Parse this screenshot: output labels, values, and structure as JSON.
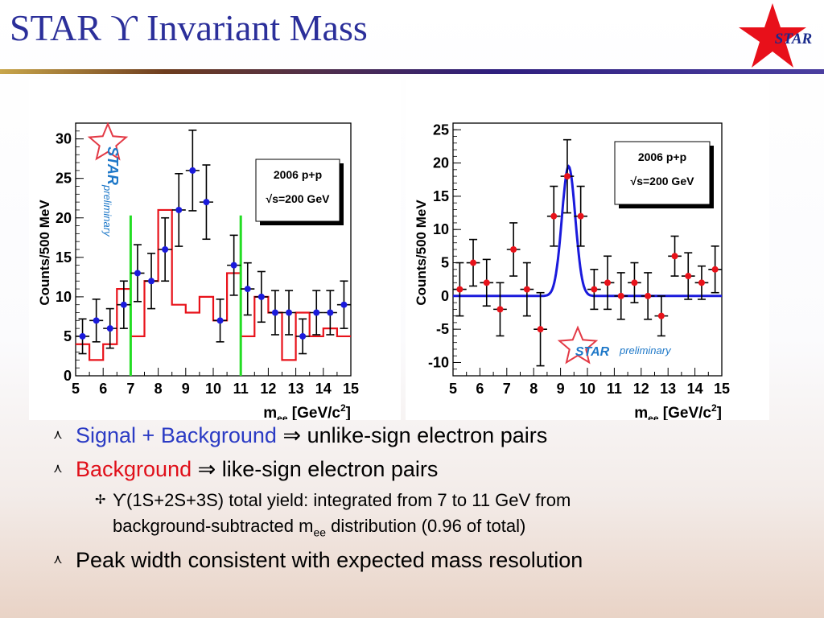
{
  "title": "STAR ϒ Invariant Mass",
  "logo_text": "STAR",
  "colors": {
    "title": "#2b2f9a",
    "data_points": "#1a1adc",
    "background_hist": "#e8121a",
    "window_lines": "#22dd22",
    "fit_curve": "#1a1adc",
    "right_points": "#e8121a",
    "signal_text": "#2b3bc4",
    "background_text": "#e0101a"
  },
  "chart_data": [
    {
      "type": "bar",
      "xlabel_main": "m",
      "xlabel_sub": "ee",
      "xlabel_rest": " [GeV/c",
      "xlabel_sup": "2",
      "xlabel_end": "]",
      "ylabel": "Counts/500 MeV",
      "xlim": [
        5,
        15
      ],
      "ylim": [
        0,
        32
      ],
      "x_ticks": [
        "5",
        "6",
        "7",
        "8",
        "9",
        "10",
        "11",
        "12",
        "13",
        "14",
        "15"
      ],
      "y_ticks": [
        "0",
        "5",
        "10",
        "15",
        "20",
        "25",
        "30"
      ],
      "info_box": {
        "line1": "2006 p+p",
        "line2": "√s=200 GeV"
      },
      "watermark": {
        "logo": "STAR",
        "text": "preliminary"
      },
      "window_lines": [
        7,
        11
      ],
      "background_histogram": {
        "edges": [
          5,
          5.5,
          6,
          6.5,
          7,
          7.5,
          8,
          8.5,
          9,
          9.5,
          10,
          10.5,
          11,
          11.5,
          12,
          12.5,
          13,
          13.5,
          14,
          14.5,
          15
        ],
        "values": [
          4,
          2,
          4,
          11,
          5,
          12,
          21,
          9,
          8,
          10,
          7,
          13,
          5,
          10,
          8,
          2,
          8,
          5,
          6,
          5
        ]
      },
      "series": [
        {
          "x": [
            5.25,
            5.75,
            6.25,
            6.75,
            7.25,
            7.75,
            8.25,
            8.75,
            9.25,
            9.75,
            10.25,
            10.75,
            11.25,
            11.75,
            12.25,
            12.75,
            13.25,
            13.75,
            14.25,
            14.75
          ],
          "values": [
            5,
            7,
            6,
            9,
            13,
            12,
            16,
            21,
            26,
            22,
            7,
            14,
            11,
            10,
            8,
            8,
            5,
            8,
            8,
            9
          ],
          "err": [
            2.2,
            2.7,
            2.5,
            3,
            3.6,
            3.5,
            4,
            4.6,
            5.1,
            4.7,
            2.7,
            3.8,
            3.3,
            3.2,
            2.8,
            2.8,
            2.2,
            2.8,
            2.8,
            3
          ]
        }
      ]
    },
    {
      "type": "scatter",
      "xlabel_main": "m",
      "xlabel_sub": "ee",
      "xlabel_rest": " [GeV/c",
      "xlabel_sup": "2",
      "xlabel_end": "]",
      "ylabel": "Counts/500 MeV",
      "xlim": [
        5,
        15
      ],
      "ylim": [
        -12,
        26
      ],
      "x_ticks": [
        "5",
        "6",
        "7",
        "8",
        "9",
        "10",
        "11",
        "12",
        "13",
        "14",
        "15"
      ],
      "y_ticks": [
        "-10",
        "-5",
        "0",
        "5",
        "10",
        "15",
        "20",
        "25"
      ],
      "info_box": {
        "line1": "2006 p+p",
        "line2": "√s=200 GeV"
      },
      "watermark": {
        "logo": "STAR",
        "text": "preliminary"
      },
      "fit": {
        "mean": 9.3,
        "sigma": 0.25,
        "amplitude": 19.5,
        "baseline": 0
      },
      "series": [
        {
          "x": [
            5.25,
            5.75,
            6.25,
            6.75,
            7.25,
            7.75,
            8.25,
            8.75,
            9.25,
            9.75,
            10.25,
            10.75,
            11.25,
            11.75,
            12.25,
            12.75,
            13.25,
            13.75,
            14.25,
            14.75
          ],
          "values": [
            1,
            5,
            2,
            -2,
            7,
            1,
            -5,
            12,
            18,
            12,
            1,
            2,
            0,
            2,
            0,
            -3,
            6,
            3,
            2,
            4
          ],
          "err": [
            4,
            3.5,
            3.5,
            4,
            4,
            4,
            5.5,
            4.5,
            5.5,
            4.5,
            3,
            4,
            3.5,
            3,
            3.5,
            3,
            3,
            3.5,
            2.5,
            3.5
          ]
        }
      ]
    }
  ],
  "bullets": [
    {
      "colored": "Signal + Background",
      "arrow": "⇒",
      "rest": "unlike-sign electron pairs"
    },
    {
      "colored": "Background",
      "arrow": "⇒",
      "rest": "like-sign electron pairs"
    }
  ],
  "sub_bullet": {
    "upsilon": "ϒ",
    "line1": "(1S+2S+3S) total yield: integrated from 7 to 11 GeV from",
    "line2_pre": "background-subtracted m",
    "line2_sub": "ee",
    "line2_post": " distribution (0.96 of total)"
  },
  "last_bullet": "Peak width consistent with expected mass resolution"
}
